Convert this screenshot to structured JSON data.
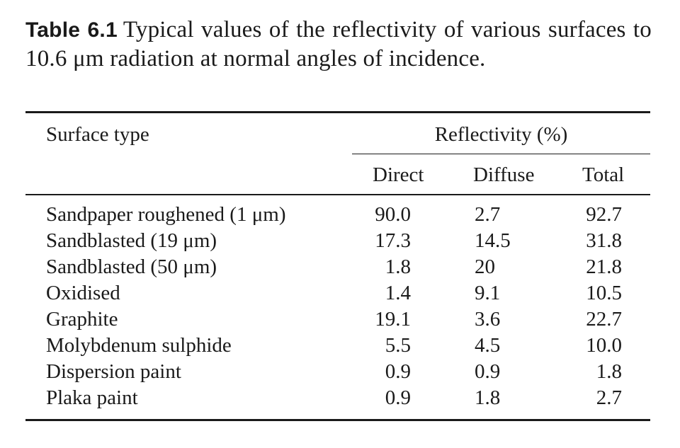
{
  "caption": {
    "label": "Table 6.1",
    "text": "Typical values of the reflectivity of various surfaces to 10.6 μm radiation at normal angles of incidence."
  },
  "table": {
    "header": {
      "surface": "Surface type",
      "group": "Reflectivity (%)",
      "direct": "Direct",
      "diffuse": "Diffuse",
      "total": "Total"
    },
    "rows": [
      {
        "surface": "Sandpaper roughened (1 μm)",
        "direct": "90.0",
        "diffuse": "2.7",
        "total": "92.7"
      },
      {
        "surface": "Sandblasted (19 μm)",
        "direct": "17.3",
        "diffuse": "14.5",
        "total": "31.8"
      },
      {
        "surface": "Sandblasted (50 μm)",
        "direct": "1.8",
        "diffuse": "20",
        "total": "21.8"
      },
      {
        "surface": "Oxidised",
        "direct": "1.4",
        "diffuse": "9.1",
        "total": "10.5"
      },
      {
        "surface": "Graphite",
        "direct": "19.1",
        "diffuse": "3.6",
        "total": "22.7"
      },
      {
        "surface": "Molybdenum sulphide",
        "direct": "5.5",
        "diffuse": "4.5",
        "total": "10.0"
      },
      {
        "surface": "Dispersion paint",
        "direct": "0.9",
        "diffuse": "0.9",
        "total": "1.8"
      },
      {
        "surface": "Plaka paint",
        "direct": "0.9",
        "diffuse": "1.8",
        "total": "2.7"
      }
    ]
  }
}
